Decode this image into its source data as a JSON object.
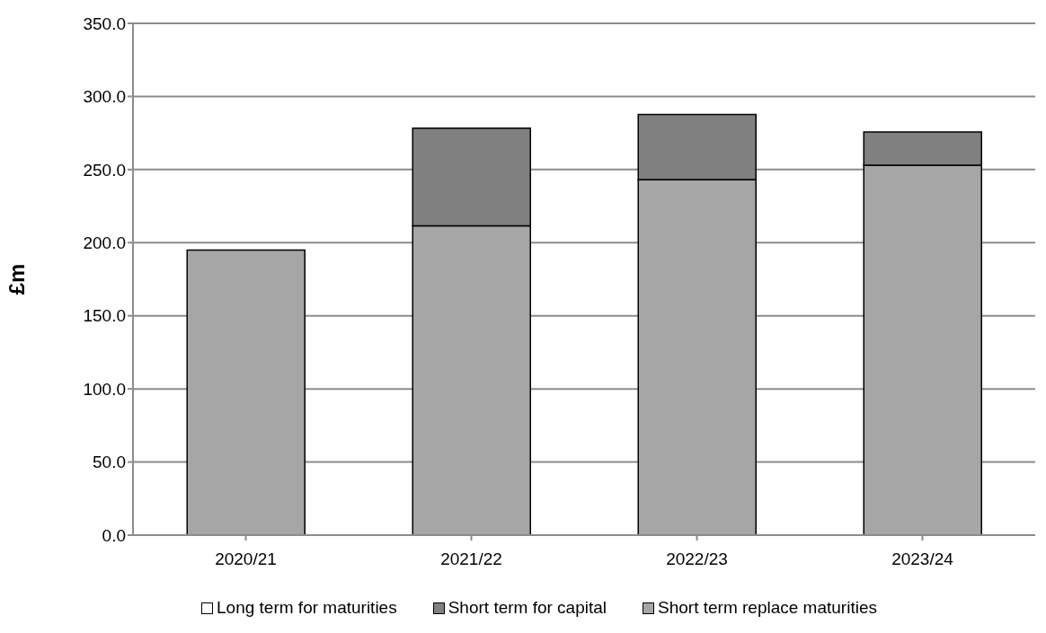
{
  "chart_data": {
    "type": "bar",
    "stacked": true,
    "ylabel": "£m",
    "categories": [
      "2020/21",
      "2021/22",
      "2022/23",
      "2023/24"
    ],
    "series": [
      {
        "name": "Short term replace maturities",
        "color": "#a6a6a6",
        "values": [
          195.0,
          211.5,
          243.1,
          253.0
        ]
      },
      {
        "name": "Short term for capital",
        "color": "#808080",
        "values": [
          null,
          66.8,
          44.5,
          22.7
        ]
      },
      {
        "name": "Long term for maturities",
        "color": "#ffffff",
        "values": [
          null,
          null,
          null,
          null
        ]
      }
    ],
    "ylim": [
      0,
      350
    ],
    "yticks": [
      {
        "value": 0,
        "label": "0.0"
      },
      {
        "value": 50,
        "label": "50.0"
      },
      {
        "value": 100,
        "label": "100.0"
      },
      {
        "value": 150,
        "label": "150.0"
      },
      {
        "value": 200,
        "label": "200.0"
      },
      {
        "value": 250,
        "label": "250.0"
      },
      {
        "value": 300,
        "label": "300.0"
      },
      {
        "value": 350,
        "label": "350.0"
      }
    ],
    "grid": "y",
    "legend": "bottom"
  }
}
